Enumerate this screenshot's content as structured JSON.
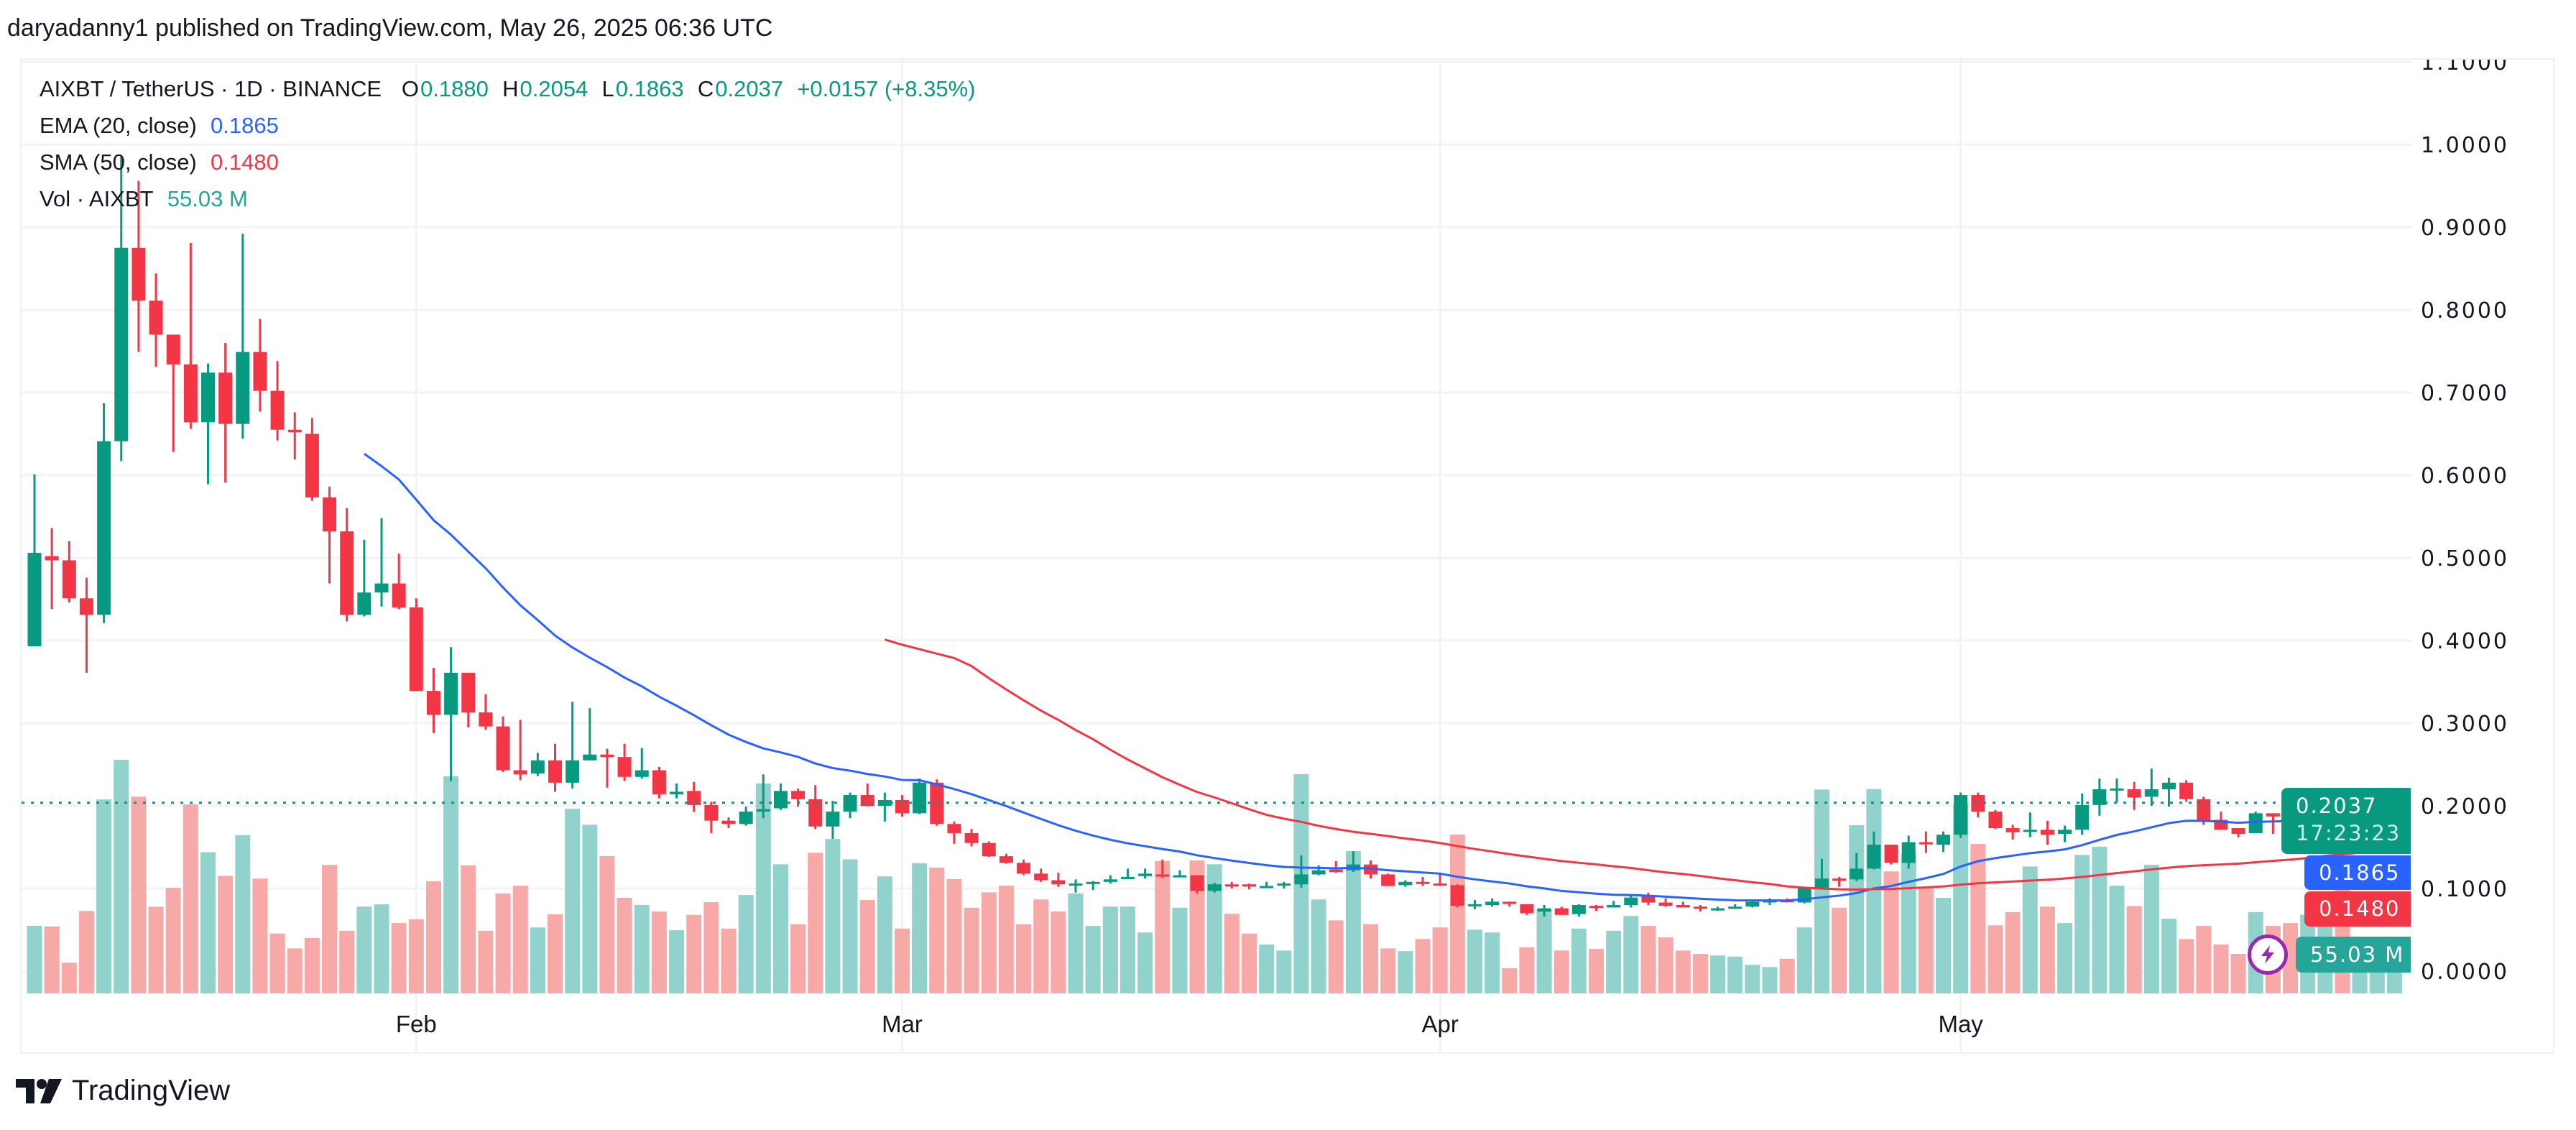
{
  "header": {
    "published": "daryadanny1 published on TradingView.com, May 26, 2025 06:36 UTC"
  },
  "legend": {
    "symbol": "AIXBT / TetherUS · 1D · BINANCE",
    "o_label": "O",
    "o": "0.1880",
    "h_label": "H",
    "h": "0.2054",
    "l_label": "L",
    "l": "0.1863",
    "c_label": "C",
    "c": "0.2037",
    "change": "+0.0157 (+8.35%)",
    "ema_label": "EMA (20, close)",
    "ema_value": "0.1865",
    "sma_label": "SMA (50, close)",
    "sma_value": "0.1480",
    "vol_label": "Vol · AIXBT",
    "vol_value": "55.03 M"
  },
  "price_tags": {
    "last": "0.2037",
    "countdown": "17:23:23",
    "ema": "0.1865",
    "sma": "0.1480",
    "vol": "55.03 M"
  },
  "footer": {
    "logo_text": "TradingView"
  },
  "icons": {
    "logo": "tradingview-logo",
    "alert": "lightning-bolt-icon"
  },
  "colors": {
    "up": "#089981",
    "down": "#F23645",
    "vol_up": "#92D2CC",
    "vol_down": "#F7A9A7",
    "ema": "#2962FF",
    "sma": "#F23645",
    "grid": "#F2F3F5"
  },
  "chart_data": {
    "type": "candlestick",
    "title": "AIXBT / TetherUS · 1D · BINANCE",
    "ylim": [
      0,
      1.1
    ],
    "y_ticks": [
      "0.0000",
      "0.1000",
      "0.2000",
      "0.3000",
      "0.4000",
      "0.5000",
      "0.6000",
      "0.7000",
      "0.8000",
      "0.9000",
      "1.0000",
      "1.1000"
    ],
    "x_ticks": [
      {
        "label": "Feb",
        "date": "2025-02-01"
      },
      {
        "label": "Mar",
        "date": "2025-03-01"
      },
      {
        "label": "Apr",
        "date": "2025-04-01"
      },
      {
        "label": "May",
        "date": "2025-05-01"
      }
    ],
    "grid": true,
    "indicators": [
      {
        "name": "EMA (20, close)",
        "period": 20,
        "kind": "ema"
      },
      {
        "name": "SMA (50, close)",
        "period": 50,
        "kind": "sma"
      }
    ],
    "last_price": 0.2037,
    "volume_unit": "M",
    "columns": [
      "date",
      "open",
      "high",
      "low",
      "close",
      "volume"
    ],
    "candles": [
      [
        "2025-01-10",
        0.393,
        0.601,
        0.393,
        0.506,
        105.7
      ],
      [
        "2025-01-11",
        0.502,
        0.536,
        0.438,
        0.497,
        104.8
      ],
      [
        "2025-01-12",
        0.497,
        0.52,
        0.446,
        0.451,
        48.1
      ],
      [
        "2025-01-13",
        0.451,
        0.476,
        0.361,
        0.431,
        128.9
      ],
      [
        "2025-01-14",
        0.431,
        0.687,
        0.421,
        0.641,
        303.2
      ],
      [
        "2025-01-15",
        0.641,
        0.985,
        0.617,
        0.875,
        365.1
      ],
      [
        "2025-01-16",
        0.875,
        0.956,
        0.749,
        0.811,
        307.5
      ],
      [
        "2025-01-17",
        0.811,
        0.844,
        0.731,
        0.77,
        135.7
      ],
      [
        "2025-01-18",
        0.77,
        0.77,
        0.628,
        0.734,
        164.9
      ],
      [
        "2025-01-19",
        0.734,
        0.881,
        0.656,
        0.664,
        295.5
      ],
      [
        "2025-01-20",
        0.664,
        0.735,
        0.589,
        0.724,
        220.8
      ],
      [
        "2025-01-21",
        0.724,
        0.76,
        0.591,
        0.662,
        183.8
      ],
      [
        "2025-01-22",
        0.662,
        0.892,
        0.644,
        0.749,
        247.4
      ],
      [
        "2025-01-23",
        0.749,
        0.789,
        0.677,
        0.702,
        179.5
      ],
      [
        "2025-01-24",
        0.702,
        0.738,
        0.642,
        0.655,
        93.6
      ],
      [
        "2025-01-25",
        0.655,
        0.676,
        0.619,
        0.652,
        70.4
      ],
      [
        "2025-01-26",
        0.65,
        0.669,
        0.569,
        0.573,
        86.8
      ],
      [
        "2025-01-27",
        0.573,
        0.586,
        0.469,
        0.532,
        201.0
      ],
      [
        "2025-01-28",
        0.532,
        0.56,
        0.423,
        0.431,
        97.9
      ],
      [
        "2025-01-29",
        0.431,
        0.522,
        0.429,
        0.458,
        135.7
      ],
      [
        "2025-01-30",
        0.458,
        0.548,
        0.441,
        0.469,
        139.2
      ],
      [
        "2025-01-31",
        0.469,
        0.505,
        0.438,
        0.44,
        110.0
      ],
      [
        "2025-02-01",
        0.44,
        0.451,
        0.339,
        0.339,
        116.0
      ],
      [
        "2025-02-02",
        0.339,
        0.367,
        0.288,
        0.31,
        175.2
      ],
      [
        "2025-02-03",
        0.31,
        0.392,
        0.23,
        0.361,
        339.3
      ],
      [
        "2025-02-04",
        0.361,
        0.361,
        0.295,
        0.313,
        200.1
      ],
      [
        "2025-02-05",
        0.313,
        0.335,
        0.292,
        0.296,
        97.9
      ],
      [
        "2025-02-06",
        0.296,
        0.308,
        0.241,
        0.243,
        156.3
      ],
      [
        "2025-02-07",
        0.243,
        0.304,
        0.231,
        0.238,
        168.4
      ],
      [
        "2025-02-08",
        0.239,
        0.264,
        0.236,
        0.255,
        103.1
      ],
      [
        "2025-02-09",
        0.255,
        0.275,
        0.217,
        0.228,
        123.7
      ],
      [
        "2025-02-10",
        0.228,
        0.326,
        0.221,
        0.255,
        288.6
      ],
      [
        "2025-02-11",
        0.255,
        0.318,
        0.255,
        0.262,
        263.7
      ],
      [
        "2025-02-12",
        0.262,
        0.269,
        0.222,
        0.259,
        214.8
      ],
      [
        "2025-02-13",
        0.259,
        0.275,
        0.23,
        0.235,
        149.5
      ],
      [
        "2025-02-14",
        0.235,
        0.27,
        0.233,
        0.243,
        138.3
      ],
      [
        "2025-02-15",
        0.243,
        0.247,
        0.209,
        0.214,
        128.0
      ],
      [
        "2025-02-16",
        0.214,
        0.227,
        0.209,
        0.217,
        98.8
      ],
      [
        "2025-02-17",
        0.218,
        0.229,
        0.193,
        0.201,
        122.8
      ],
      [
        "2025-02-18",
        0.201,
        0.205,
        0.167,
        0.182,
        142.6
      ],
      [
        "2025-02-19",
        0.182,
        0.186,
        0.173,
        0.178,
        101.4
      ],
      [
        "2025-02-20",
        0.178,
        0.199,
        0.176,
        0.193,
        153.8
      ],
      [
        "2025-02-21",
        0.193,
        0.238,
        0.185,
        0.196,
        328.1
      ],
      [
        "2025-02-22",
        0.197,
        0.227,
        0.195,
        0.218,
        201.9
      ],
      [
        "2025-02-23",
        0.218,
        0.221,
        0.199,
        0.208,
        108.2
      ],
      [
        "2025-02-24",
        0.208,
        0.225,
        0.172,
        0.175,
        219.9
      ],
      [
        "2025-02-25",
        0.175,
        0.206,
        0.16,
        0.193,
        241.4
      ],
      [
        "2025-02-26",
        0.193,
        0.216,
        0.185,
        0.213,
        209.6
      ],
      [
        "2025-02-27",
        0.213,
        0.227,
        0.199,
        0.2,
        146.0
      ],
      [
        "2025-02-28",
        0.2,
        0.216,
        0.181,
        0.207,
        183.0
      ],
      [
        "2025-03-01",
        0.207,
        0.213,
        0.187,
        0.191,
        101.4
      ],
      [
        "2025-03-02",
        0.191,
        0.233,
        0.19,
        0.228,
        203.6
      ],
      [
        "2025-03-03",
        0.228,
        0.232,
        0.176,
        0.178,
        196.7
      ],
      [
        "2025-03-04",
        0.178,
        0.181,
        0.154,
        0.167,
        178.7
      ],
      [
        "2025-03-05",
        0.167,
        0.172,
        0.151,
        0.155,
        134.0
      ],
      [
        "2025-03-06",
        0.155,
        0.157,
        0.138,
        0.139,
        158.1
      ],
      [
        "2025-03-07",
        0.139,
        0.142,
        0.13,
        0.131,
        168.4
      ],
      [
        "2025-03-08",
        0.131,
        0.135,
        0.116,
        0.118,
        108.2
      ],
      [
        "2025-03-09",
        0.118,
        0.124,
        0.108,
        0.11,
        146.9
      ],
      [
        "2025-03-10",
        0.11,
        0.119,
        0.102,
        0.105,
        128.0
      ],
      [
        "2025-03-11",
        0.104,
        0.111,
        0.095,
        0.106,
        156.3
      ],
      [
        "2025-03-12",
        0.107,
        0.109,
        0.098,
        0.108,
        105.7
      ],
      [
        "2025-03-13",
        0.108,
        0.116,
        0.106,
        0.111,
        135.7
      ],
      [
        "2025-03-14",
        0.112,
        0.124,
        0.112,
        0.114,
        135.7
      ],
      [
        "2025-03-15",
        0.115,
        0.124,
        0.112,
        0.118,
        95.3
      ],
      [
        "2025-03-16",
        0.117,
        0.135,
        0.113,
        0.115,
        207.0
      ],
      [
        "2025-03-17",
        0.115,
        0.122,
        0.114,
        0.116,
        134.0
      ],
      [
        "2025-03-18",
        0.116,
        0.116,
        0.094,
        0.097,
        207.9
      ],
      [
        "2025-03-19",
        0.097,
        0.107,
        0.095,
        0.105,
        201.9
      ],
      [
        "2025-03-20",
        0.105,
        0.108,
        0.1,
        0.104,
        124.6
      ],
      [
        "2025-03-21",
        0.105,
        0.106,
        0.099,
        0.104,
        93.6
      ],
      [
        "2025-03-22",
        0.102,
        0.108,
        0.101,
        0.103,
        76.5
      ],
      [
        "2025-03-23",
        0.104,
        0.108,
        0.1,
        0.106,
        67.0
      ],
      [
        "2025-03-24",
        0.105,
        0.14,
        0.101,
        0.117,
        342.7
      ],
      [
        "2025-03-25",
        0.117,
        0.128,
        0.116,
        0.122,
        146.9
      ],
      [
        "2025-03-26",
        0.123,
        0.133,
        0.119,
        0.12,
        114.2
      ],
      [
        "2025-03-27",
        0.122,
        0.145,
        0.12,
        0.129,
        222.5
      ],
      [
        "2025-03-28",
        0.129,
        0.134,
        0.112,
        0.117,
        108.2
      ],
      [
        "2025-03-29",
        0.117,
        0.118,
        0.103,
        0.103,
        70.4
      ],
      [
        "2025-03-30",
        0.104,
        0.11,
        0.102,
        0.108,
        66.1
      ],
      [
        "2025-03-31",
        0.108,
        0.114,
        0.103,
        0.106,
        85.0
      ],
      [
        "2025-04-01",
        0.106,
        0.117,
        0.103,
        0.104,
        103.1
      ],
      [
        "2025-04-02",
        0.104,
        0.105,
        0.077,
        0.079,
        248.3
      ],
      [
        "2025-04-03",
        0.079,
        0.086,
        0.075,
        0.081,
        99.6
      ],
      [
        "2025-04-04",
        0.08,
        0.088,
        0.078,
        0.084,
        95.3
      ],
      [
        "2025-04-05",
        0.084,
        0.084,
        0.078,
        0.083,
        39.5
      ],
      [
        "2025-04-06",
        0.081,
        0.081,
        0.068,
        0.07,
        72.2
      ],
      [
        "2025-04-07",
        0.072,
        0.08,
        0.066,
        0.076,
        132.3
      ],
      [
        "2025-04-08",
        0.076,
        0.078,
        0.068,
        0.068,
        67.0
      ],
      [
        "2025-04-09",
        0.069,
        0.081,
        0.066,
        0.08,
        101.4
      ],
      [
        "2025-04-10",
        0.079,
        0.08,
        0.073,
        0.078,
        69.6
      ],
      [
        "2025-04-11",
        0.077,
        0.085,
        0.077,
        0.08,
        97.9
      ],
      [
        "2025-04-12",
        0.08,
        0.093,
        0.077,
        0.089,
        121.1
      ],
      [
        "2025-04-13",
        0.092,
        0.095,
        0.08,
        0.083,
        105.7
      ],
      [
        "2025-04-14",
        0.083,
        0.088,
        0.078,
        0.079,
        87.6
      ],
      [
        "2025-04-15",
        0.08,
        0.084,
        0.077,
        0.077,
        67.0
      ],
      [
        "2025-04-16",
        0.078,
        0.08,
        0.072,
        0.076,
        61.8
      ],
      [
        "2025-04-17",
        0.075,
        0.078,
        0.073,
        0.076,
        59.3
      ],
      [
        "2025-04-18",
        0.076,
        0.081,
        0.076,
        0.078,
        57.6
      ],
      [
        "2025-04-19",
        0.078,
        0.086,
        0.077,
        0.084,
        44.7
      ],
      [
        "2025-04-20",
        0.083,
        0.088,
        0.08,
        0.086,
        41.2
      ],
      [
        "2025-04-21",
        0.086,
        0.088,
        0.083,
        0.084,
        54.1
      ],
      [
        "2025-04-22",
        0.083,
        0.102,
        0.082,
        0.101,
        103.1
      ],
      [
        "2025-04-23",
        0.1,
        0.136,
        0.1,
        0.112,
        318.7
      ],
      [
        "2025-04-24",
        0.112,
        0.114,
        0.102,
        0.111,
        134.0
      ],
      [
        "2025-04-25",
        0.111,
        0.143,
        0.109,
        0.124,
        262.9
      ],
      [
        "2025-04-26",
        0.124,
        0.169,
        0.123,
        0.153,
        319.5
      ],
      [
        "2025-04-27",
        0.153,
        0.153,
        0.129,
        0.131,
        190.7
      ],
      [
        "2025-04-28",
        0.131,
        0.164,
        0.124,
        0.156,
        218.2
      ],
      [
        "2025-04-29",
        0.156,
        0.169,
        0.143,
        0.155,
        166.6
      ],
      [
        "2025-04-30",
        0.153,
        0.169,
        0.144,
        0.165,
        149.5
      ],
      [
        "2025-05-01",
        0.165,
        0.216,
        0.161,
        0.213,
        297.2
      ],
      [
        "2025-05-02",
        0.213,
        0.216,
        0.186,
        0.193,
        233.6
      ],
      [
        "2025-05-03",
        0.193,
        0.195,
        0.172,
        0.173,
        106.5
      ],
      [
        "2025-05-04",
        0.173,
        0.177,
        0.159,
        0.168,
        127.1
      ],
      [
        "2025-05-05",
        0.169,
        0.192,
        0.162,
        0.171,
        198.4
      ],
      [
        "2025-05-06",
        0.171,
        0.182,
        0.153,
        0.165,
        135.7
      ],
      [
        "2025-05-07",
        0.166,
        0.176,
        0.156,
        0.171,
        110.0
      ],
      [
        "2025-05-08",
        0.171,
        0.215,
        0.165,
        0.201,
        216.5
      ],
      [
        "2025-05-09",
        0.201,
        0.233,
        0.188,
        0.22,
        229.4
      ],
      [
        "2025-05-10",
        0.219,
        0.233,
        0.204,
        0.221,
        168.4
      ],
      [
        "2025-05-11",
        0.22,
        0.229,
        0.195,
        0.21,
        136.6
      ],
      [
        "2025-05-12",
        0.211,
        0.245,
        0.2,
        0.22,
        201.0
      ],
      [
        "2025-05-13",
        0.22,
        0.234,
        0.199,
        0.228,
        116.8
      ],
      [
        "2025-05-14",
        0.228,
        0.231,
        0.205,
        0.208,
        85.0
      ],
      [
        "2025-05-15",
        0.208,
        0.211,
        0.177,
        0.182,
        105.7
      ],
      [
        "2025-05-16",
        0.183,
        0.193,
        0.171,
        0.171,
        76.5
      ],
      [
        "2025-05-17",
        0.173,
        0.173,
        0.162,
        0.166,
        61.8
      ],
      [
        "2025-05-18",
        0.167,
        0.193,
        0.167,
        0.191,
        127.1
      ],
      [
        "2025-05-19",
        0.191,
        0.191,
        0.166,
        0.187,
        105.7
      ],
      [
        "2025-05-20",
        0.188,
        0.2,
        0.177,
        0.185,
        110.0
      ],
      [
        "2025-05-21",
        0.184,
        0.208,
        0.18,
        0.199,
        122.8
      ],
      [
        "2025-05-22",
        0.199,
        0.209,
        0.197,
        0.209,
        120.3
      ],
      [
        "2025-05-23",
        0.21,
        0.22,
        0.176,
        0.177,
        163.2
      ],
      [
        "2025-05-24",
        0.177,
        0.185,
        0.175,
        0.179,
        59.3
      ],
      [
        "2025-05-25",
        0.179,
        0.188,
        0.163,
        0.188,
        84.2
      ],
      [
        "2025-05-26",
        0.188,
        0.2054,
        0.1863,
        0.2037,
        55.03
      ]
    ]
  }
}
